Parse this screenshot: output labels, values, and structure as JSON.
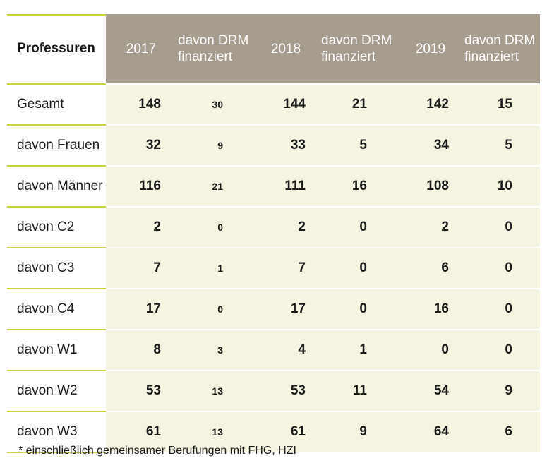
{
  "header": {
    "label": "Professuren",
    "columns": [
      "2017",
      "davon DRM finanziert",
      "2018",
      "davon DRM finanziert",
      "2019",
      "davon DRM finanziert"
    ]
  },
  "rows": [
    {
      "label": "Gesamt",
      "values": [
        "148",
        "30",
        "144",
        "21",
        "142",
        "15"
      ]
    },
    {
      "label": "davon Frauen",
      "values": [
        "32",
        "9",
        "33",
        "5",
        "34",
        "5"
      ]
    },
    {
      "label": "davon Männer",
      "values": [
        "116",
        "21",
        "111",
        "16",
        "108",
        "10"
      ]
    },
    {
      "label": "davon C2",
      "values": [
        "2",
        "0",
        "2",
        "0",
        "2",
        "0"
      ]
    },
    {
      "label": "davon C3",
      "values": [
        "7",
        "1",
        "7",
        "0",
        "6",
        "0"
      ]
    },
    {
      "label": "davon C4",
      "values": [
        "17",
        "0",
        "17",
        "0",
        "16",
        "0"
      ]
    },
    {
      "label": "davon W1",
      "values": [
        "8",
        "3",
        "4",
        "1",
        "0",
        "0"
      ]
    },
    {
      "label": "davon W2",
      "values": [
        "53",
        "13",
        "53",
        "11",
        "54",
        "9"
      ]
    },
    {
      "label": "davon W3",
      "values": [
        "61",
        "13",
        "61",
        "9",
        "64",
        "6"
      ]
    }
  ],
  "footnote": "* einschließlich gemeinsamer Berufungen mit FHG, HZI",
  "colors": {
    "header_band": "#a69d8f",
    "row_band": "#f4f4e1",
    "accent": "#c8d43c"
  }
}
